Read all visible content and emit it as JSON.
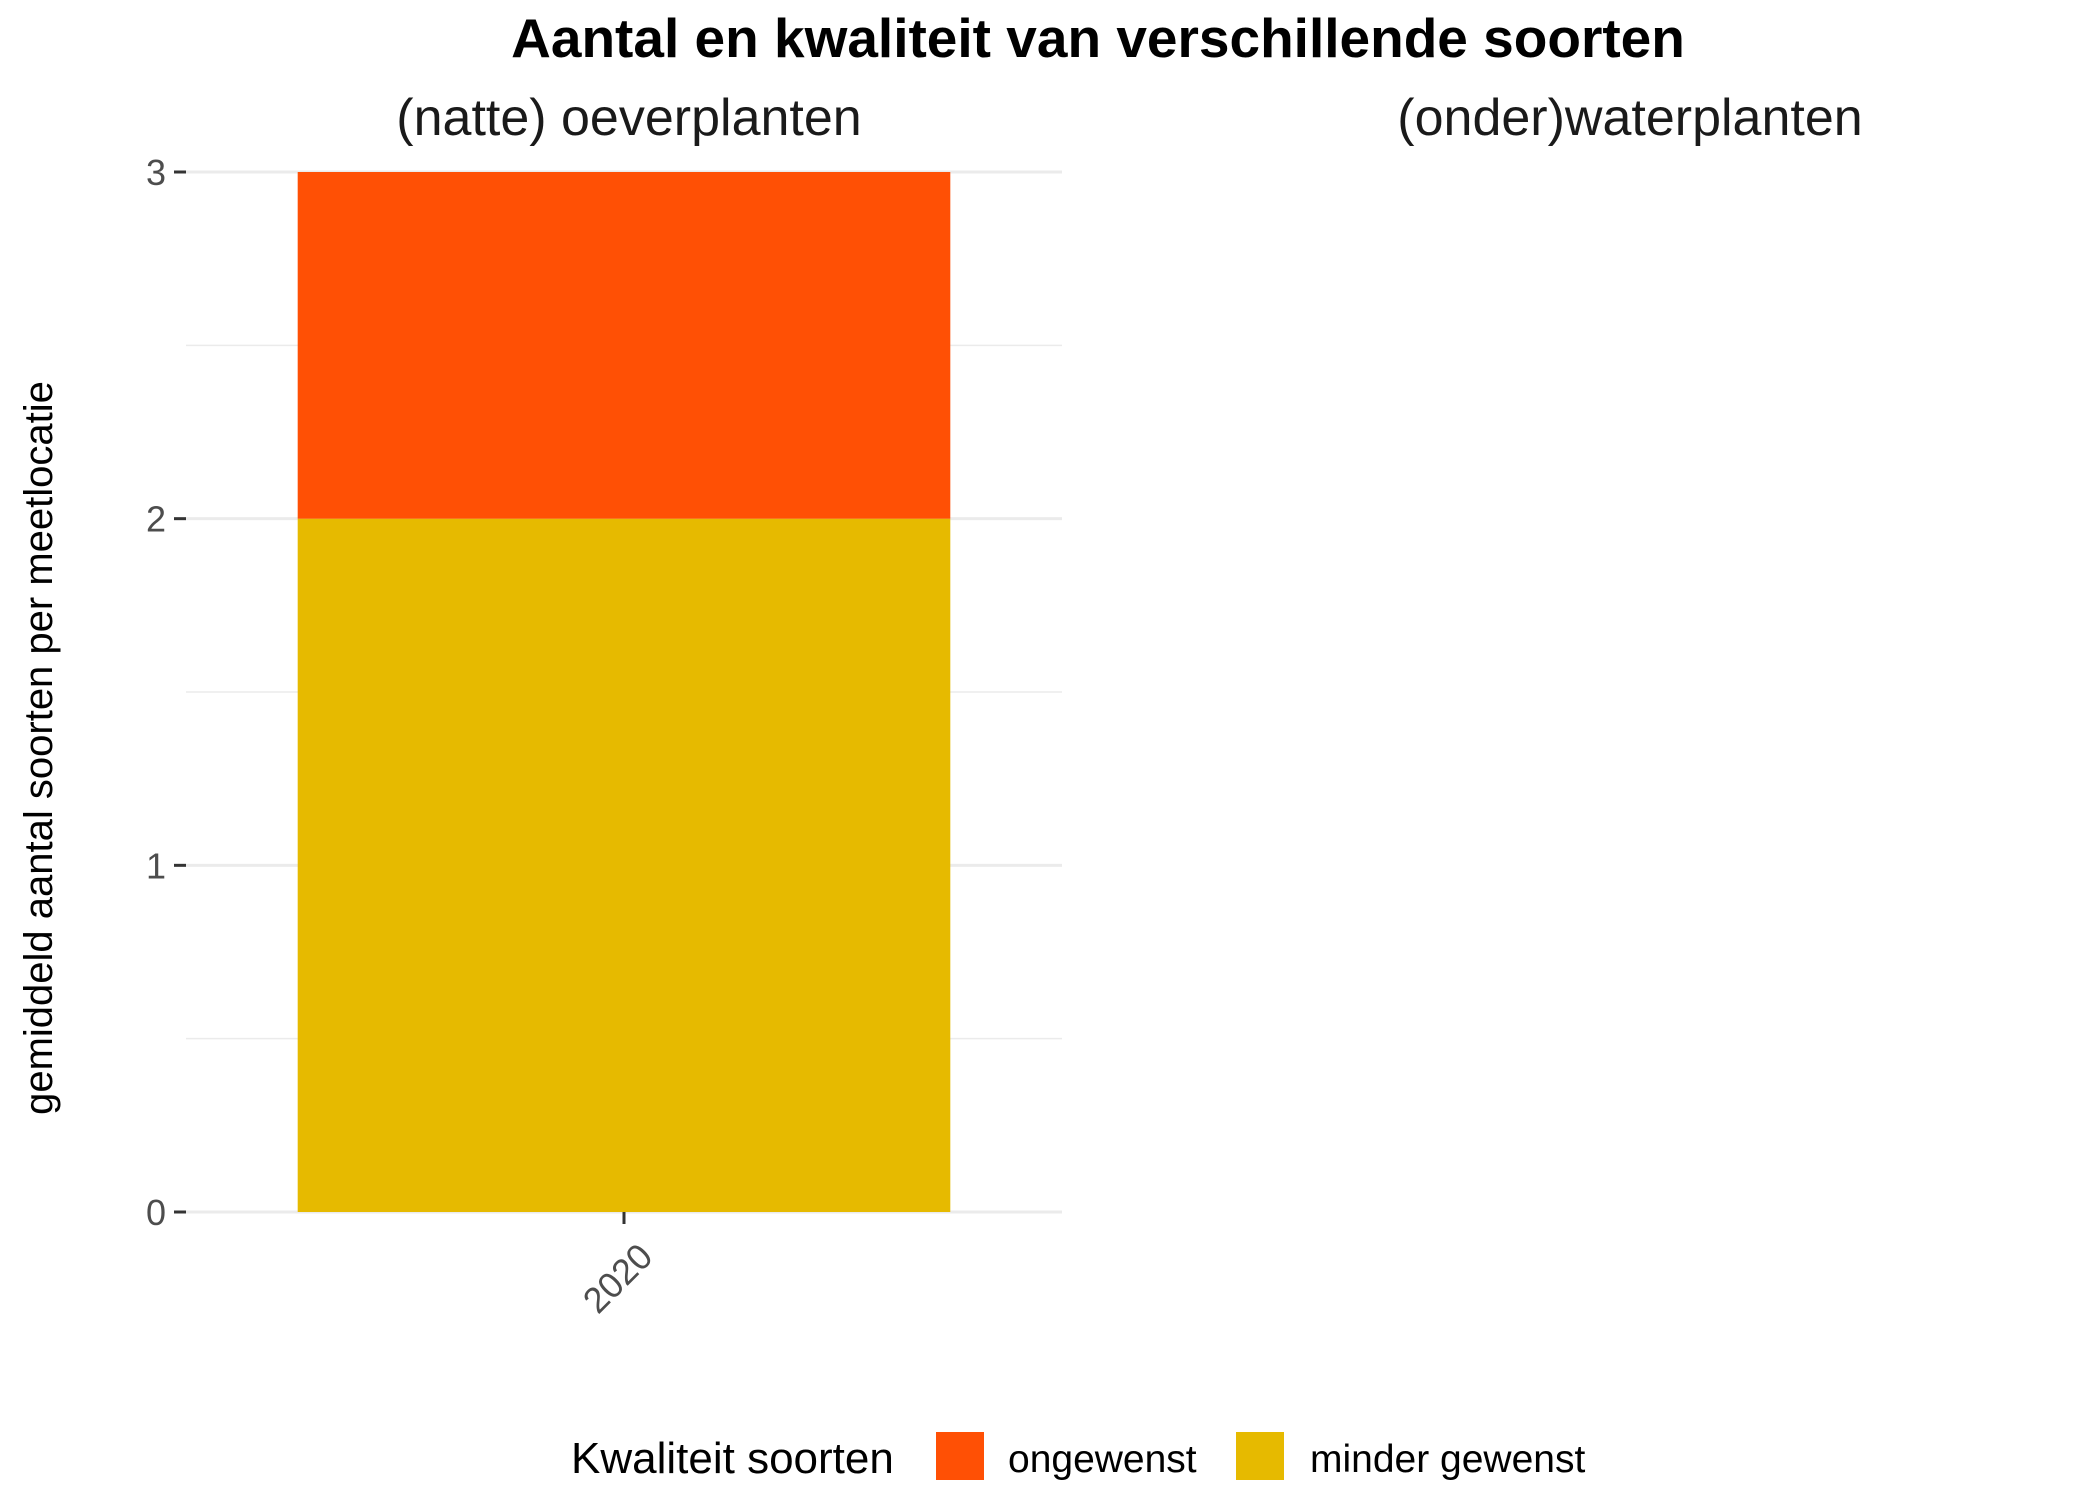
{
  "chart_data": {
    "type": "bar",
    "stacked": true,
    "title": "Aantal en kwaliteit van verschillende soorten",
    "xlabel": "",
    "ylabel": "gemiddeld aantal soorten per meetlocatie",
    "ylim": [
      0,
      3
    ],
    "y_ticks": [
      0,
      1,
      2,
      3
    ],
    "y_minor_ticks": [
      0.5,
      1.5,
      2.5
    ],
    "grid": true,
    "x_tick_rotation": 45,
    "panels": [
      {
        "label": "(natte) oeverplanten",
        "categories": [
          "2020"
        ],
        "series": [
          {
            "name": "minder gewenst",
            "values": [
              2
            ]
          },
          {
            "name": "ongewenst",
            "values": [
              1
            ]
          }
        ]
      },
      {
        "label": "(onder)waterplanten",
        "categories": [],
        "series": []
      }
    ],
    "legend": {
      "title": "Kwaliteit soorten",
      "position": "bottom",
      "entries": [
        {
          "label": "ongewenst",
          "color": "#FF5005"
        },
        {
          "label": "minder gewenst",
          "color": "#E6BA00"
        }
      ]
    }
  }
}
